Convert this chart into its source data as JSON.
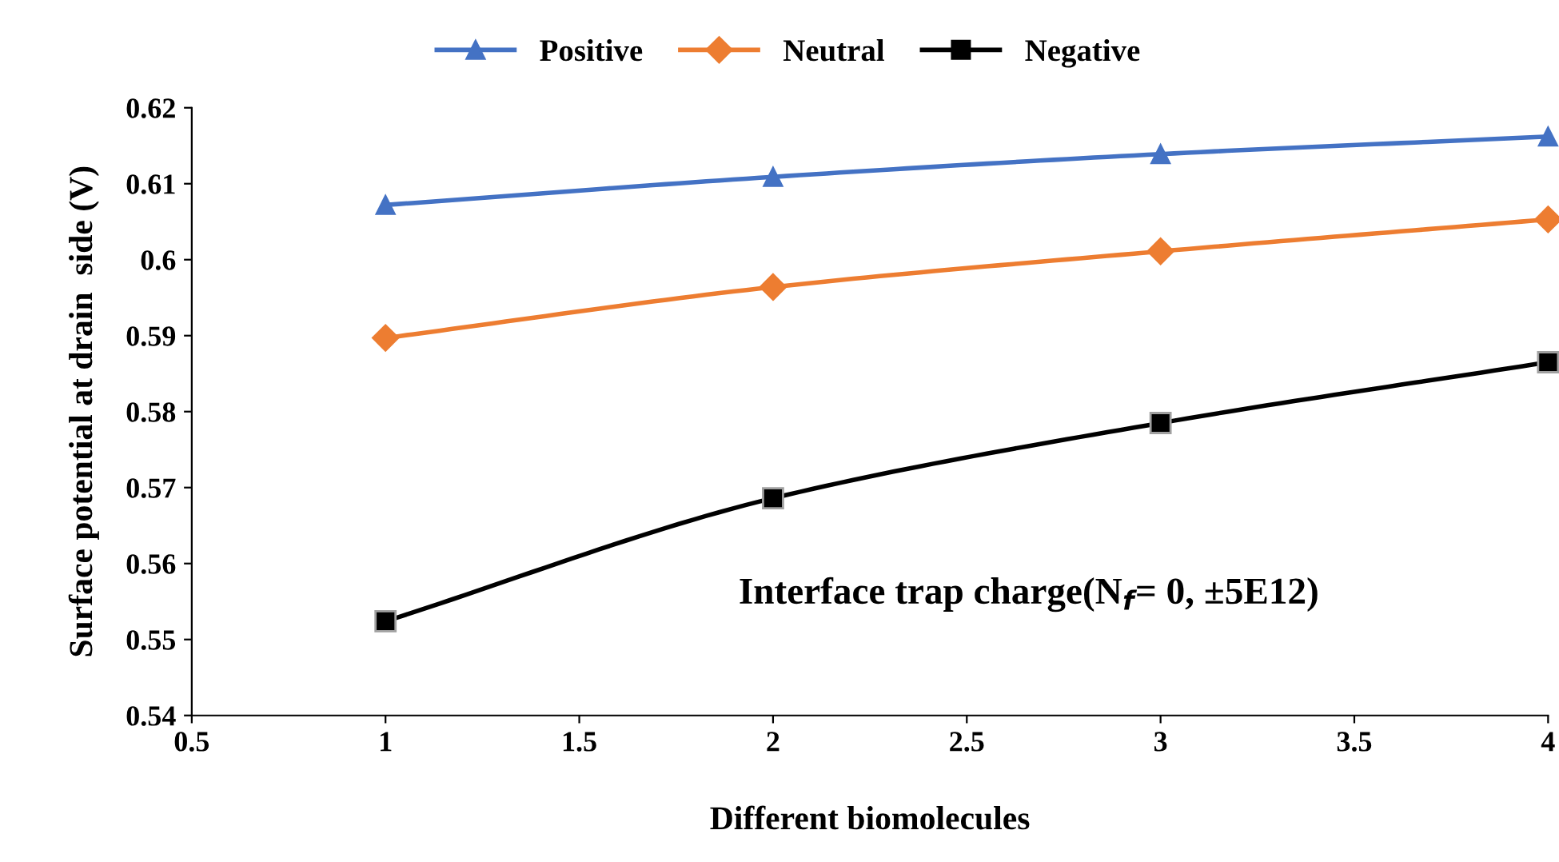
{
  "chart_data": {
    "type": "line",
    "xlabel": "Different biomolecules",
    "ylabel": "Surface potential at drain  side (V)",
    "x": [
      1,
      2,
      3,
      4
    ],
    "series": [
      {
        "name": "Positive",
        "color": "#4472c4",
        "marker": "triangle",
        "values": [
          0.6072,
          0.6109,
          0.6139,
          0.6162
        ]
      },
      {
        "name": "Neutral",
        "color": "#ed7d31",
        "marker": "diamond",
        "values": [
          0.5897,
          0.5964,
          0.6011,
          0.6053
        ]
      },
      {
        "name": "Negative",
        "color": "#000000",
        "marker": "square",
        "values": [
          0.5524,
          0.5686,
          0.5785,
          0.5865
        ]
      }
    ],
    "xlim": [
      0.5,
      4
    ],
    "xticks": [
      0.5,
      1,
      1.5,
      2,
      2.5,
      3,
      3.5,
      4
    ],
    "ylim": [
      0.54,
      0.62
    ],
    "yticks": [
      0.54,
      0.55,
      0.56,
      0.57,
      0.58,
      0.59,
      0.6,
      0.61,
      0.62
    ],
    "grid": false,
    "legend": "top",
    "line_style": "solid",
    "annotations": [
      "Interface trap charge(N$_{f}$= 0, ±5E12)"
    ]
  }
}
